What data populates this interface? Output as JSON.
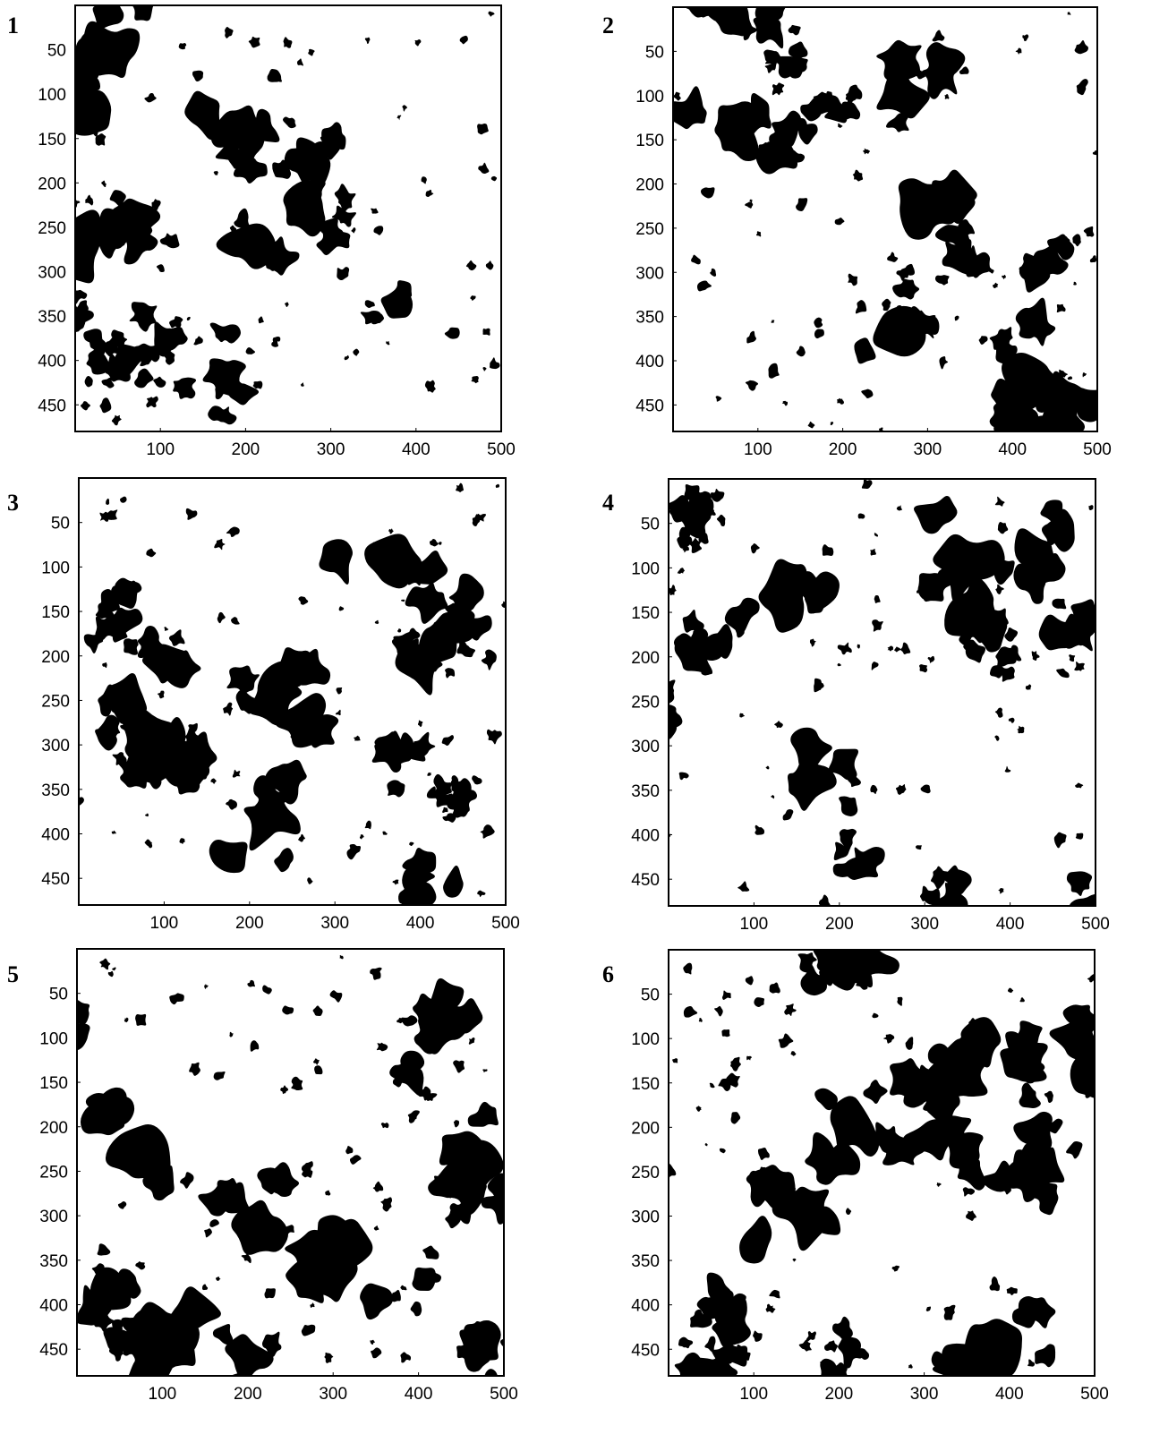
{
  "chart_data": [
    {
      "type": "heatmap",
      "panel_label": "1",
      "colors": {
        "pore": "#000000",
        "solid": "#ffffff",
        "frame": "#000000"
      },
      "xlim": [
        0,
        500
      ],
      "ylim": [
        0,
        480
      ],
      "y_inverted": true,
      "x_ticks": [
        100,
        200,
        300,
        400,
        500
      ],
      "y_ticks": [
        50,
        100,
        150,
        200,
        250,
        300,
        350,
        400,
        450
      ],
      "x_tick_labels": [
        "100",
        "200",
        "300",
        "400",
        "500"
      ],
      "y_tick_labels": [
        "50",
        "100",
        "150",
        "200",
        "250",
        "300",
        "350",
        "400",
        "450"
      ],
      "seed": 11
    },
    {
      "type": "heatmap",
      "panel_label": "2",
      "colors": {
        "pore": "#000000",
        "solid": "#ffffff",
        "frame": "#000000"
      },
      "xlim": [
        0,
        500
      ],
      "ylim": [
        0,
        480
      ],
      "y_inverted": true,
      "x_ticks": [
        100,
        200,
        300,
        400,
        500
      ],
      "y_ticks": [
        50,
        100,
        150,
        200,
        250,
        300,
        350,
        400,
        450
      ],
      "x_tick_labels": [
        "100",
        "200",
        "300",
        "400",
        "500"
      ],
      "y_tick_labels": [
        "50",
        "100",
        "150",
        "200",
        "250",
        "300",
        "350",
        "400",
        "450"
      ],
      "seed": 23
    },
    {
      "type": "heatmap",
      "panel_label": "3",
      "colors": {
        "pore": "#000000",
        "solid": "#ffffff",
        "frame": "#000000"
      },
      "xlim": [
        0,
        500
      ],
      "ylim": [
        0,
        480
      ],
      "y_inverted": true,
      "x_ticks": [
        100,
        200,
        300,
        400,
        500
      ],
      "y_ticks": [
        50,
        100,
        150,
        200,
        250,
        300,
        350,
        400,
        450
      ],
      "x_tick_labels": [
        "100",
        "200",
        "300",
        "400",
        "500"
      ],
      "y_tick_labels": [
        "50",
        "100",
        "150",
        "200",
        "250",
        "300",
        "350",
        "400",
        "450"
      ],
      "seed": 37
    },
    {
      "type": "heatmap",
      "panel_label": "4",
      "colors": {
        "pore": "#000000",
        "solid": "#ffffff",
        "frame": "#000000"
      },
      "xlim": [
        0,
        500
      ],
      "ylim": [
        0,
        480
      ],
      "y_inverted": true,
      "x_ticks": [
        100,
        200,
        300,
        400,
        500
      ],
      "y_ticks": [
        50,
        100,
        150,
        200,
        250,
        300,
        350,
        400,
        450
      ],
      "x_tick_labels": [
        "100",
        "200",
        "300",
        "400",
        "500"
      ],
      "y_tick_labels": [
        "50",
        "100",
        "150",
        "200",
        "250",
        "300",
        "350",
        "400",
        "450"
      ],
      "seed": 41
    },
    {
      "type": "heatmap",
      "panel_label": "5",
      "colors": {
        "pore": "#000000",
        "solid": "#ffffff",
        "frame": "#000000"
      },
      "xlim": [
        0,
        500
      ],
      "ylim": [
        0,
        480
      ],
      "y_inverted": true,
      "x_ticks": [
        100,
        200,
        300,
        400,
        500
      ],
      "y_ticks": [
        50,
        100,
        150,
        200,
        250,
        300,
        350,
        400,
        450
      ],
      "x_tick_labels": [
        "100",
        "200",
        "300",
        "400",
        "500"
      ],
      "y_tick_labels": [
        "50",
        "100",
        "150",
        "200",
        "250",
        "300",
        "350",
        "400",
        "450"
      ],
      "seed": 53
    },
    {
      "type": "heatmap",
      "panel_label": "6",
      "colors": {
        "pore": "#000000",
        "solid": "#ffffff",
        "frame": "#000000"
      },
      "xlim": [
        0,
        500
      ],
      "ylim": [
        0,
        480
      ],
      "y_inverted": true,
      "x_ticks": [
        100,
        200,
        300,
        400,
        500
      ],
      "y_ticks": [
        50,
        100,
        150,
        200,
        250,
        300,
        350,
        400,
        450
      ],
      "x_tick_labels": [
        "100",
        "200",
        "300",
        "400",
        "500"
      ],
      "y_tick_labels": [
        "50",
        "100",
        "150",
        "200",
        "250",
        "300",
        "350",
        "400",
        "450"
      ],
      "seed": 67
    }
  ]
}
